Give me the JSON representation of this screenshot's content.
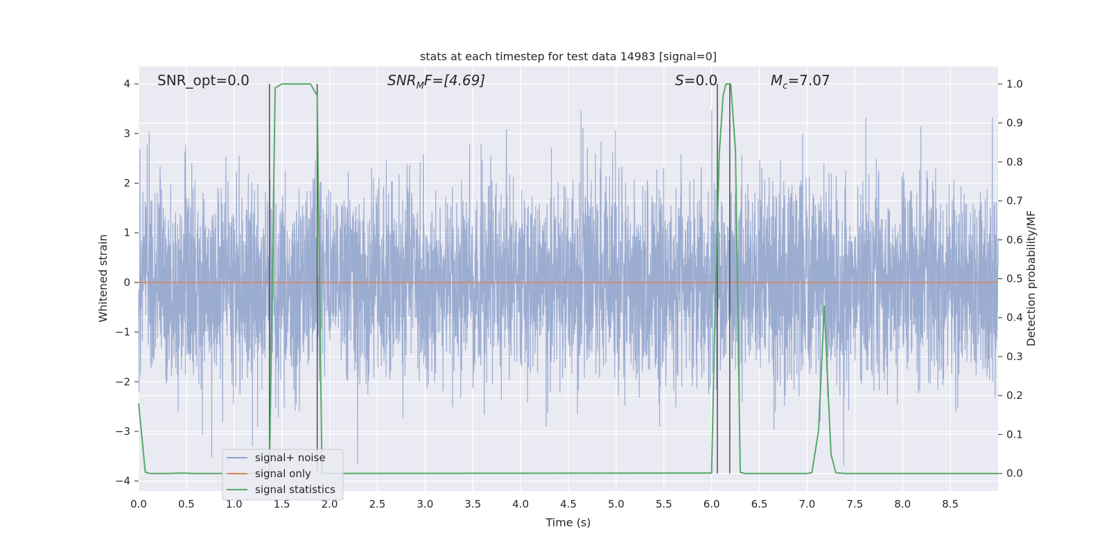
{
  "chart_data": {
    "type": "line",
    "title": "stats at each timestep for test data 14983 [signal=0]",
    "xlabel": "Time (s)",
    "ylabel_left": "Whitened strain",
    "ylabel_right": "Detection probability/MF",
    "xlim": [
      0.0,
      9.0
    ],
    "ylim_left": [
      -4.2,
      4.35
    ],
    "ylim_right": [
      -0.045,
      1.045
    ],
    "x_ticks": [
      "0.0",
      "0.5",
      "1.0",
      "1.5",
      "2.0",
      "2.5",
      "3.0",
      "3.5",
      "4.0",
      "4.5",
      "5.0",
      "5.5",
      "6.0",
      "6.5",
      "7.0",
      "7.5",
      "8.0",
      "8.5"
    ],
    "y_ticks_left": [
      "4",
      "3",
      "2",
      "1",
      "0",
      "−1",
      "−2",
      "−3",
      "−4"
    ],
    "y_ticks_right": [
      "1.0",
      "0.9",
      "0.8",
      "0.7",
      "0.6",
      "0.5",
      "0.4",
      "0.3",
      "0.2",
      "0.1",
      "0.0"
    ],
    "grid": true,
    "legend_position": "lower-left",
    "annotations": {
      "snr_opt": "SNR_opt=0.0",
      "snr_mf_main": "SNR",
      "snr_mf_sub": "M",
      "snr_mf_rest": "F=[4.69]",
      "s_main": "S",
      "s_rest": "=0.0",
      "mc_main": "M",
      "mc_sub": "c",
      "mc_rest": "=7.07"
    },
    "series": [
      {
        "name": "signal+ noise",
        "color": "#8da1cb",
        "style": "noise",
        "noise_sd": 1.0,
        "approx_range": [
          -3.7,
          4.0
        ],
        "sample_rate_hz": 512
      },
      {
        "name": "signal only",
        "color": "#dd8452",
        "x": [
          0.0,
          9.0
        ],
        "y": [
          0.0,
          0.0
        ]
      },
      {
        "name": "signal statistics",
        "color": "#55a868",
        "axis": "right",
        "x": [
          0.0,
          0.07,
          0.12,
          0.3,
          0.45,
          0.6,
          1.3,
          1.37,
          1.43,
          1.5,
          1.6,
          1.8,
          1.87,
          1.92,
          2.0,
          6.0,
          6.03,
          6.08,
          6.12,
          6.15,
          6.2,
          6.25,
          6.3,
          6.35,
          7.0,
          7.05,
          7.12,
          7.18,
          7.25,
          7.3,
          7.4,
          9.0
        ],
        "y": [
          0.18,
          0.003,
          0.0,
          0.0,
          0.001,
          0.0,
          0.0,
          0.0,
          0.99,
          1.0,
          1.0,
          1.0,
          0.97,
          0.0,
          0.0,
          0.001,
          0.35,
          0.82,
          0.97,
          1.0,
          1.0,
          0.83,
          0.003,
          0.0,
          0.0,
          0.002,
          0.11,
          0.43,
          0.05,
          0.002,
          0.0,
          0.0
        ]
      }
    ],
    "vlines": {
      "color": "#555555",
      "x": [
        1.37,
        1.87,
        6.06,
        6.19
      ]
    }
  }
}
